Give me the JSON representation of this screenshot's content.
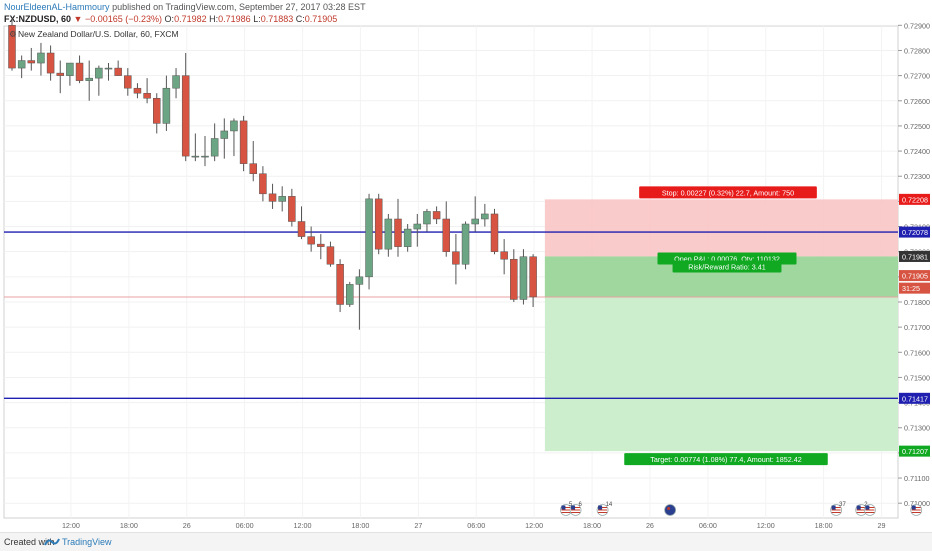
{
  "header": {
    "author": "NourEldeenAL-Hammoury",
    "published": "published on TradingView.com, September 27, 2017 03:28 EST",
    "symbol": "FX:NZDUSD, 60",
    "change": "−0.00165 (−0.23%)",
    "o_label": "O:",
    "o_value": "0.71982",
    "h_label": "H:",
    "h_value": "0.71986",
    "l_label": "L:",
    "l_value": "0.71883",
    "c_label": "C:",
    "c_value": "0.71905"
  },
  "chart_title": "New Zealand Dollar/U.S. Dollar, 60, FXCM",
  "footer": {
    "created": "Created with",
    "brand": "TradingView"
  },
  "colors": {
    "up": "#6ba583",
    "down": "#d75442",
    "blue_line": "#1f1fb0",
    "stop_zone": "#f9c5c5",
    "target_zone": "#cdeecd",
    "entry_zone": "#9fd79f",
    "stop_label": "#e81b1b",
    "target_label": "#11a822"
  },
  "chart_data": {
    "type": "candlestick",
    "yticks": [
      "0.72900",
      "0.72800",
      "0.72700",
      "0.72600",
      "0.72500",
      "0.72400",
      "0.72300",
      "0.72200",
      "0.72100",
      "0.72000",
      "0.71900",
      "0.71800",
      "0.71700",
      "0.71600",
      "0.71500",
      "0.71400",
      "0.71300",
      "0.71200",
      "0.71100",
      "0.71000"
    ],
    "ylim": [
      0.70965,
      0.72945
    ],
    "xticks": [
      {
        "label": "12:00",
        "i": 3
      },
      {
        "label": "18:00",
        "i": 9
      },
      {
        "label": "26",
        "i": 15
      },
      {
        "label": "06:00",
        "i": 21
      },
      {
        "label": "12:00",
        "i": 27
      },
      {
        "label": "18:00",
        "i": 33
      },
      {
        "label": "27",
        "i": 39
      },
      {
        "label": "06:00",
        "i": 45
      },
      {
        "label": "12:00",
        "i": 51
      },
      {
        "label": "18:00",
        "i": 57
      },
      {
        "label": "26",
        "i": 63
      },
      {
        "label": "06:00",
        "i": 69
      },
      {
        "label": "12:00",
        "i": 75
      },
      {
        "label": "18:00",
        "i": 81
      },
      {
        "label": "29",
        "i": 87
      }
    ],
    "candles": [
      [
        0.729,
        0.7293,
        0.7272,
        0.7273
      ],
      [
        0.7273,
        0.7278,
        0.7269,
        0.7276
      ],
      [
        0.7276,
        0.7281,
        0.7272,
        0.7275
      ],
      [
        0.7275,
        0.7283,
        0.727,
        0.7279
      ],
      [
        0.7279,
        0.7282,
        0.7268,
        0.7271
      ],
      [
        0.7271,
        0.7276,
        0.7263,
        0.727
      ],
      [
        0.727,
        0.7275,
        0.7266,
        0.7275
      ],
      [
        0.7275,
        0.7278,
        0.7267,
        0.7268
      ],
      [
        0.7268,
        0.7276,
        0.726,
        0.7269
      ],
      [
        0.7269,
        0.7274,
        0.7262,
        0.7273
      ],
      [
        0.7273,
        0.7275,
        0.7268,
        0.7273
      ],
      [
        0.7273,
        0.7276,
        0.727,
        0.727
      ],
      [
        0.727,
        0.7273,
        0.7262,
        0.7265
      ],
      [
        0.7265,
        0.7267,
        0.7261,
        0.7263
      ],
      [
        0.7263,
        0.7269,
        0.7259,
        0.7261
      ],
      [
        0.7261,
        0.7263,
        0.7247,
        0.7251
      ],
      [
        0.7251,
        0.727,
        0.7248,
        0.7265
      ],
      [
        0.7265,
        0.7273,
        0.7261,
        0.727
      ],
      [
        0.727,
        0.7279,
        0.7236,
        0.7238
      ],
      [
        0.7238,
        0.7247,
        0.7236,
        0.7238
      ],
      [
        0.7238,
        0.7246,
        0.7234,
        0.7238
      ],
      [
        0.7238,
        0.7251,
        0.7236,
        0.7245
      ],
      [
        0.7245,
        0.7253,
        0.7237,
        0.7248
      ],
      [
        0.7248,
        0.7253,
        0.7238,
        0.7252
      ],
      [
        0.7252,
        0.7254,
        0.7232,
        0.7235
      ],
      [
        0.7235,
        0.7244,
        0.7228,
        0.7231
      ],
      [
        0.7231,
        0.7234,
        0.722,
        0.7223
      ],
      [
        0.7223,
        0.7227,
        0.7217,
        0.722
      ],
      [
        0.722,
        0.7226,
        0.7216,
        0.7222
      ],
      [
        0.7222,
        0.7225,
        0.721,
        0.7212
      ],
      [
        0.7212,
        0.7218,
        0.7205,
        0.7206
      ],
      [
        0.7206,
        0.721,
        0.72,
        0.7203
      ],
      [
        0.7203,
        0.7207,
        0.7197,
        0.7202
      ],
      [
        0.7202,
        0.7204,
        0.7194,
        0.7195
      ],
      [
        0.7195,
        0.7197,
        0.7176,
        0.7179
      ],
      [
        0.7179,
        0.7188,
        0.7178,
        0.7187
      ],
      [
        0.7187,
        0.7193,
        0.7169,
        0.719
      ],
      [
        0.719,
        0.7223,
        0.7185,
        0.7221
      ],
      [
        0.7221,
        0.7223,
        0.7199,
        0.7201
      ],
      [
        0.7201,
        0.7215,
        0.7198,
        0.7213
      ],
      [
        0.7213,
        0.7221,
        0.7198,
        0.7202
      ],
      [
        0.7202,
        0.7211,
        0.72,
        0.7209
      ],
      [
        0.7209,
        0.7215,
        0.7202,
        0.7211
      ],
      [
        0.7211,
        0.7217,
        0.7208,
        0.7216
      ],
      [
        0.7216,
        0.7218,
        0.7211,
        0.7213
      ],
      [
        0.7213,
        0.722,
        0.7198,
        0.72
      ],
      [
        0.72,
        0.7207,
        0.7187,
        0.7195
      ],
      [
        0.7195,
        0.7212,
        0.7193,
        0.7211
      ],
      [
        0.7211,
        0.7222,
        0.7208,
        0.7213
      ],
      [
        0.7213,
        0.7219,
        0.721,
        0.7215
      ],
      [
        0.7215,
        0.7217,
        0.7199,
        0.72
      ],
      [
        0.72,
        0.7205,
        0.7191,
        0.7197
      ],
      [
        0.7197,
        0.7201,
        0.718,
        0.7181
      ],
      [
        0.7181,
        0.7201,
        0.7179,
        0.7198
      ],
      [
        0.7198,
        0.7199,
        0.7178,
        0.7182
      ]
    ],
    "hlines": [
      0.72078,
      0.71417
    ],
    "position": {
      "entry": 0.71981,
      "stop": 0.72208,
      "target": 0.71207,
      "start_i": 54.6,
      "stop_text": "Stop: 0.00227 (0.32%) 22.7, Amount: 750",
      "target_text": "Target: 0.00774 (1.08%) 77.4, Amount: 1852.42",
      "pnl_text": "Open P&L: 0.00076, Qty: 110132",
      "rr_text": "Risk/Reward Ratio: 3.41"
    },
    "axis_labels": [
      {
        "text": "0.72208",
        "value": 0.72208,
        "color": "#e81b1b"
      },
      {
        "text": "0.72078",
        "value": 0.72078,
        "color": "#1f1fb0"
      },
      {
        "text": "0.71981",
        "value": 0.71981,
        "color": "#333333"
      },
      {
        "text": "0.71905",
        "value": 0.71905,
        "color": "#d75442"
      },
      {
        "text": "31:25",
        "value": 0.71855,
        "color": "#d75442"
      },
      {
        "text": "0.71417",
        "value": 0.71417,
        "color": "#1f1fb0"
      },
      {
        "text": "0.71207",
        "value": 0.71207,
        "color": "#11a822"
      }
    ],
    "events": [
      {
        "i": 57.4,
        "type": "us",
        "count": "5"
      },
      {
        "i": 58.4,
        "type": "us",
        "count": "6"
      },
      {
        "i": 61.2,
        "type": "us",
        "count": "14"
      },
      {
        "i": 68.2,
        "type": "au",
        "count": ""
      },
      {
        "i": 85.4,
        "type": "us",
        "count": "37"
      },
      {
        "i": 88.0,
        "type": "us",
        "count": "2"
      },
      {
        "i": 88.9,
        "type": "us",
        "count": ""
      },
      {
        "i": 93.7,
        "type": "us",
        "count": ""
      },
      {
        "i": 96.6,
        "type": "au",
        "count": ""
      }
    ]
  }
}
